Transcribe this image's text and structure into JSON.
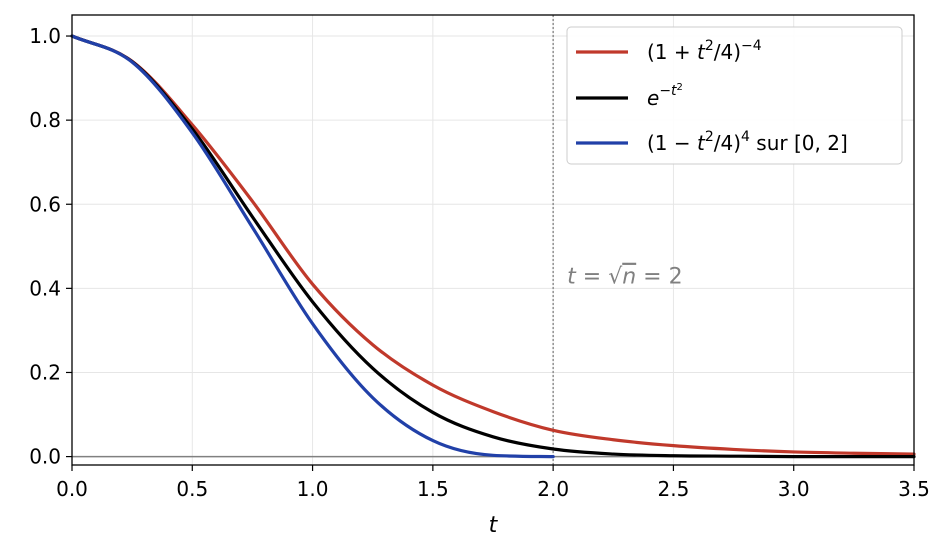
{
  "chart_data": {
    "type": "line",
    "xlabel": "t",
    "xlim": [
      0,
      3.5
    ],
    "ylim": [
      -0.02,
      1.05
    ],
    "x_ticks": [
      "0.0",
      "0.5",
      "1.0",
      "1.5",
      "2.0",
      "2.5",
      "3.0",
      "3.5"
    ],
    "y_ticks": [
      "0.0",
      "0.2",
      "0.4",
      "0.6",
      "0.8",
      "1.0"
    ],
    "grid": true,
    "legend_position": "top-right",
    "series": [
      {
        "name": "(1 + t²/4)⁻⁴",
        "color": "#c0392b",
        "x": [
          0,
          0.25,
          0.5,
          0.75,
          1.0,
          1.25,
          1.5,
          1.75,
          2.0,
          2.25,
          2.5,
          2.75,
          3.0,
          3.25,
          3.5
        ],
        "y": [
          1.0,
          0.94,
          0.789,
          0.607,
          0.41,
          0.266,
          0.17,
          0.107,
          0.0625,
          0.04,
          0.026,
          0.017,
          0.011,
          0.008,
          0.006
        ]
      },
      {
        "name": "e^(−t²)",
        "color": "#000000",
        "x": [
          0,
          0.25,
          0.5,
          0.75,
          1.0,
          1.25,
          1.5,
          1.75,
          2.0,
          2.25,
          2.5,
          2.75,
          3.0,
          3.25,
          3.5
        ],
        "y": [
          1.0,
          0.939,
          0.779,
          0.57,
          0.368,
          0.21,
          0.105,
          0.047,
          0.018,
          0.006,
          0.002,
          0.001,
          0.0,
          0.0,
          0.0
        ]
      },
      {
        "name": "(1 − t²/4)⁴ sur [0, 2]",
        "color": "#2140a8",
        "x": [
          0,
          0.25,
          0.5,
          0.75,
          1.0,
          1.25,
          1.5,
          1.75,
          2.0
        ],
        "y": [
          1.0,
          0.938,
          0.77,
          0.545,
          0.316,
          0.14,
          0.038,
          0.003,
          0.0
        ]
      }
    ],
    "vline": {
      "x": 2.0,
      "color": "#808080"
    },
    "hline": {
      "y": 0.0,
      "color": "#808080"
    },
    "annotation": {
      "text_prefix": "t = ",
      "sqrt_symbol": "√",
      "sqrt_arg": "n",
      "text_suffix": " = 2",
      "x": 2.05,
      "y": 0.43
    }
  },
  "legend": {
    "s1_base": "(1 + ",
    "s1_t": "t",
    "s1_sq": "2",
    "s1_mid": "/4)",
    "s1_exp": "−4",
    "s2_e": "e",
    "s2_exp_prefix": "−t",
    "s2_exp_sq": "2",
    "s3_base": "(1 − ",
    "s3_t": "t",
    "s3_sq": "2",
    "s3_mid": "/4)",
    "s3_exp": "4",
    "s3_tail": " sur [0, 2]"
  }
}
